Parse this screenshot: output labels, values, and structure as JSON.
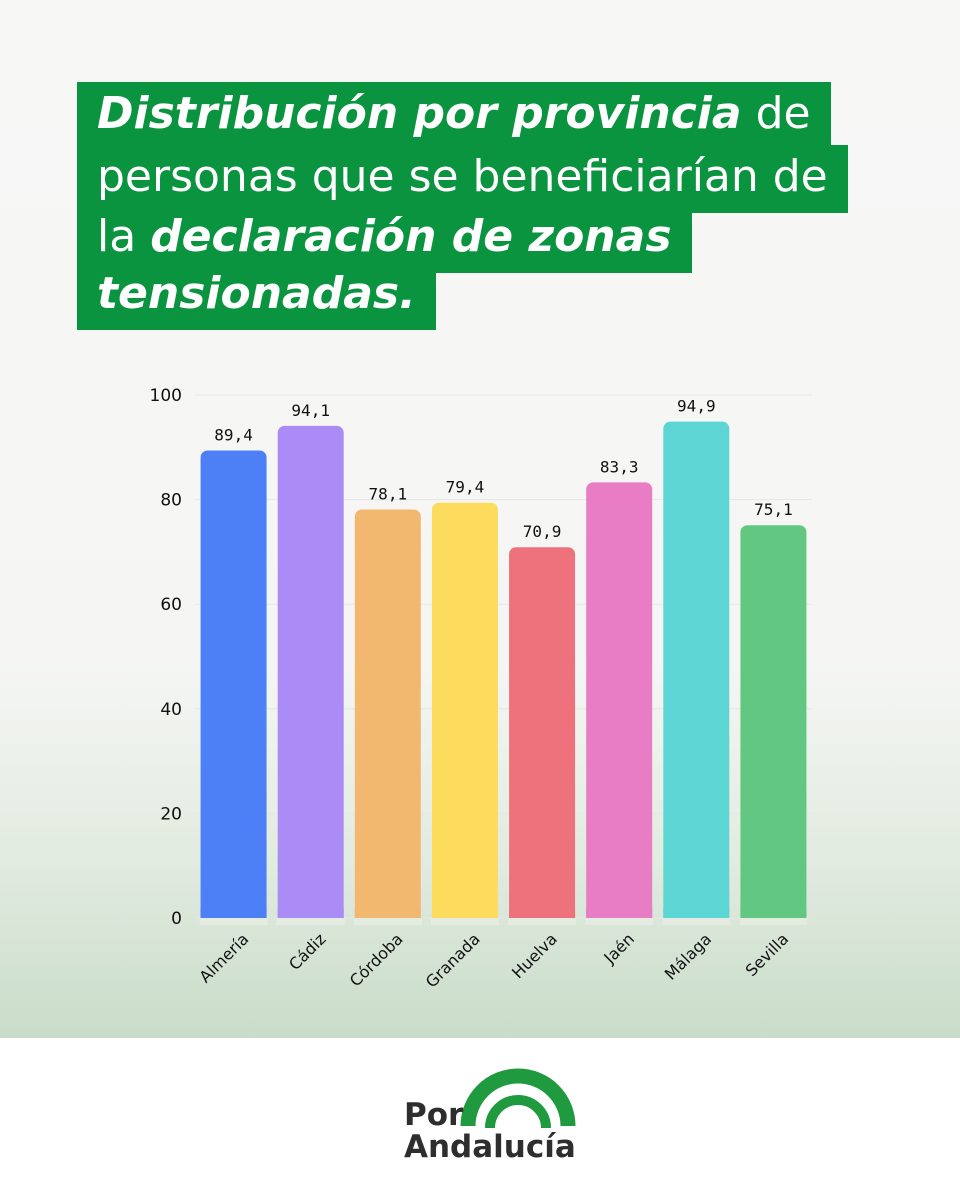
{
  "title": {
    "line1_bold": "Distribución por provincia",
    "line1_rest": " de",
    "line2": "personas que se beneficiarían de",
    "line3_pre": "la ",
    "line3_bold": "declaración de zonas",
    "line4_bold": "tensionadas."
  },
  "colors": {
    "title_bg": "#0a9440",
    "logo_green": "#1f9a3e"
  },
  "chart_data": {
    "type": "bar",
    "categories": [
      "Almería",
      "Cádiz",
      "Córdoba",
      "Granada",
      "Huelva",
      "Jaén",
      "Málaga",
      "Sevilla"
    ],
    "values": [
      89.4,
      94.1,
      78.1,
      79.4,
      70.9,
      83.3,
      94.9,
      75.1
    ],
    "value_labels": [
      "89,4",
      "94,1",
      "78,1",
      "79,4",
      "70,9",
      "83,3",
      "94,9",
      "75,1"
    ],
    "bar_colors": [
      "#4d80f7",
      "#ab8bf5",
      "#f3b870",
      "#fddb5c",
      "#ee727b",
      "#e87dc6",
      "#5dd5d4",
      "#62c780"
    ],
    "yticks": [
      "0",
      "20",
      "40",
      "60",
      "80",
      "100"
    ],
    "ylim": [
      0,
      100
    ],
    "grid": true
  },
  "logo": {
    "line1": "Por",
    "line2": "Andalucía"
  }
}
